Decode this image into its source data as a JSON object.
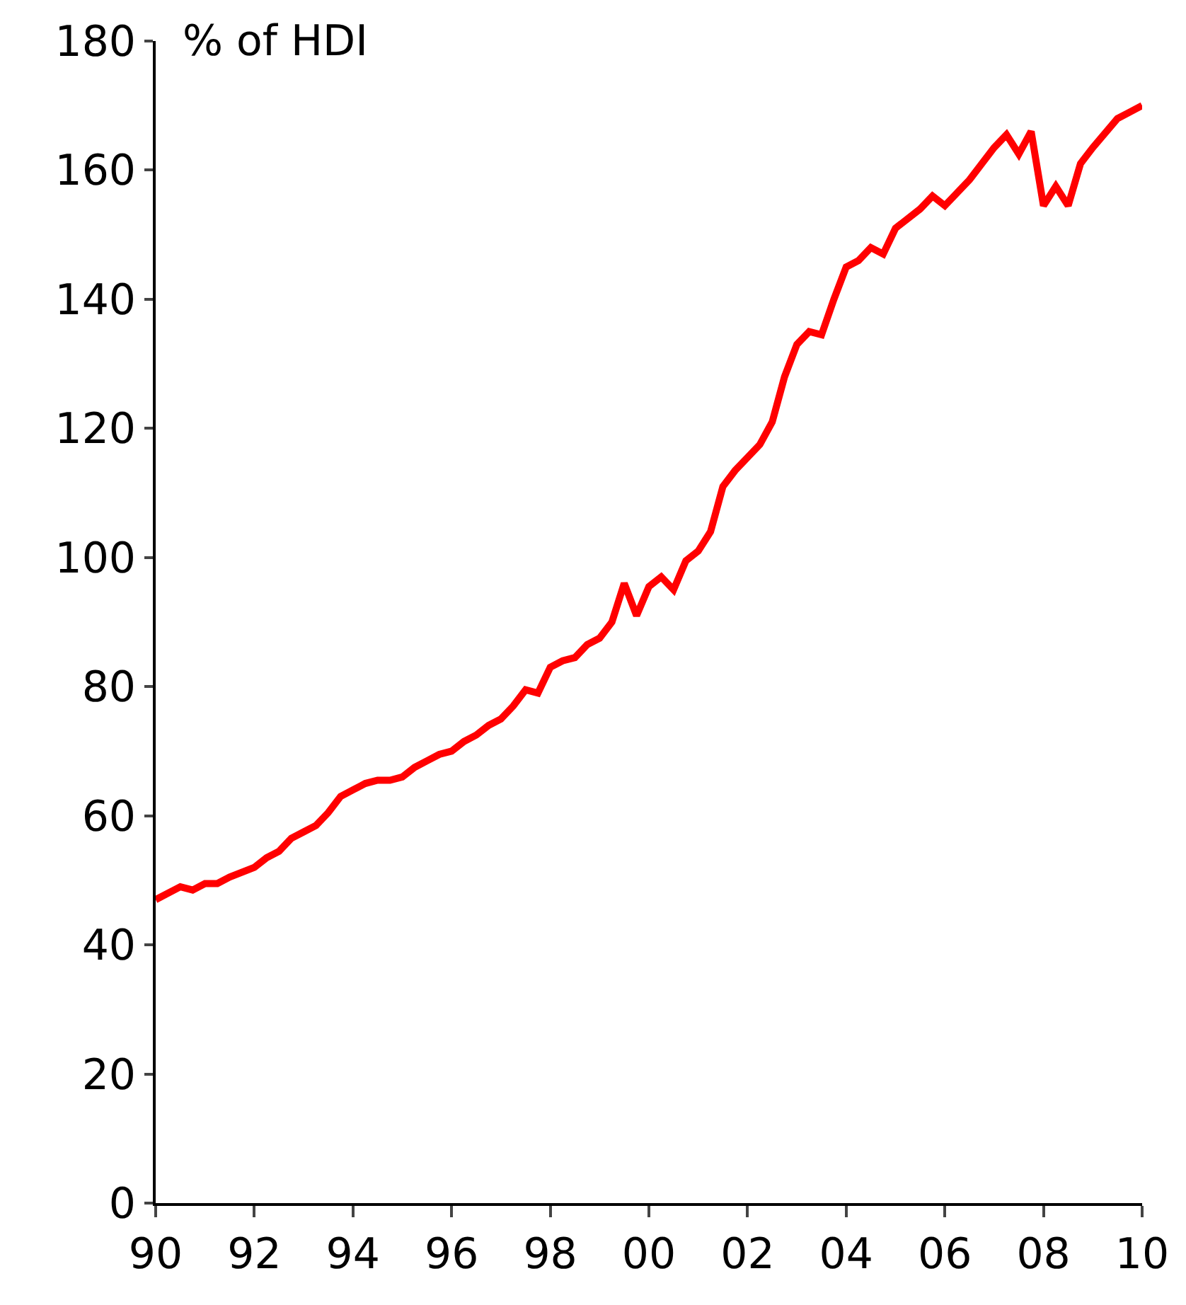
{
  "chart_data": {
    "type": "line",
    "ylabel": "% of HDI",
    "x": [
      1990.0,
      1990.5,
      1990.75,
      1991.0,
      1991.25,
      1991.5,
      1992.0,
      1992.25,
      1992.5,
      1992.75,
      1993.0,
      1993.25,
      1993.5,
      1993.75,
      1994.0,
      1994.25,
      1994.5,
      1994.75,
      1995.0,
      1995.25,
      1995.5,
      1995.75,
      1996.0,
      1996.25,
      1996.5,
      1996.75,
      1997.0,
      1997.25,
      1997.5,
      1997.75,
      1998.0,
      1998.25,
      1998.5,
      1998.75,
      1999.0,
      1999.25,
      1999.5,
      1999.75,
      2000.0,
      2000.25,
      2000.5,
      2000.75,
      2001.0,
      2001.25,
      2001.5,
      2001.75,
      2002.0,
      2002.25,
      2002.5,
      2002.75,
      2003.0,
      2003.25,
      2003.5,
      2003.75,
      2004.0,
      2004.25,
      2004.5,
      2004.75,
      2005.0,
      2005.5,
      2005.75,
      2006.0,
      2006.25,
      2006.5,
      2006.75,
      2007.0,
      2007.25,
      2007.5,
      2007.75,
      2008.0,
      2008.25,
      2008.5,
      2008.75,
      2009.0,
      2009.5,
      2009.75,
      2010.0
    ],
    "series": [
      {
        "color": "#ff0000",
        "values": [
          47,
          49,
          48.5,
          49.5,
          49.5,
          50.5,
          52,
          53.5,
          54.5,
          56.5,
          57.5,
          58.5,
          60.5,
          63,
          64,
          65,
          65.5,
          65.5,
          66,
          67.5,
          68.5,
          69.5,
          70,
          71.5,
          72.5,
          74,
          75,
          77,
          79.5,
          79,
          83,
          84,
          84.5,
          86.5,
          87.5,
          90,
          96,
          91,
          95.5,
          97,
          95,
          99.5,
          101,
          104,
          111,
          113.5,
          115.5,
          117.5,
          121,
          128,
          133,
          135,
          134.5,
          140,
          145,
          146,
          148,
          147,
          151,
          154,
          156,
          154.5,
          156.5,
          158.5,
          161,
          163.5,
          165.5,
          162.5,
          166,
          154.5,
          157.5,
          154.5,
          161,
          163.5,
          168,
          169,
          170
        ]
      }
    ],
    "xlim": [
      1990,
      2010
    ],
    "xticks": [
      {
        "value": 1990,
        "label": "90"
      },
      {
        "value": 1992,
        "label": "92"
      },
      {
        "value": 1994,
        "label": "94"
      },
      {
        "value": 1996,
        "label": "96"
      },
      {
        "value": 1998,
        "label": "98"
      },
      {
        "value": 2000,
        "label": "00"
      },
      {
        "value": 2002,
        "label": "02"
      },
      {
        "value": 2004,
        "label": "04"
      },
      {
        "value": 2006,
        "label": "06"
      },
      {
        "value": 2008,
        "label": "08"
      },
      {
        "value": 2010,
        "label": "10"
      }
    ],
    "ylim": [
      0,
      180
    ],
    "yticks": [
      0,
      20,
      40,
      60,
      80,
      100,
      120,
      140,
      160,
      180
    ],
    "marker": "none",
    "line_style": "solid"
  }
}
